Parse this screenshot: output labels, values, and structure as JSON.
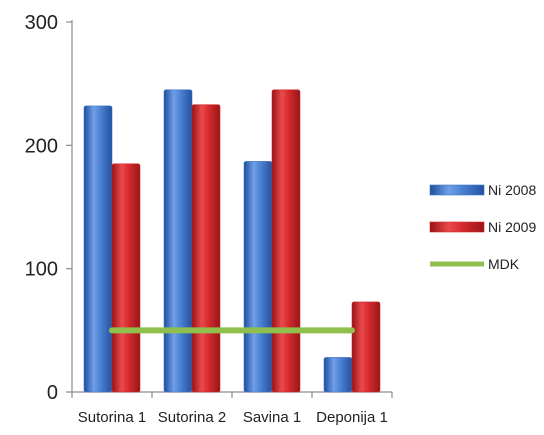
{
  "chart_data": {
    "type": "bar",
    "categories": [
      "Sutorina 1",
      "Sutorina 2",
      "Savina 1",
      "Deponija 1"
    ],
    "series": [
      {
        "name": "Ni 2008",
        "type": "bar",
        "values": [
          232,
          245,
          187,
          28
        ],
        "color": "#3f74c6"
      },
      {
        "name": "Ni 2009",
        "type": "bar",
        "values": [
          185,
          233,
          245,
          73
        ],
        "color": "#d2262a"
      },
      {
        "name": "MDK",
        "type": "line",
        "values": [
          50,
          50,
          50,
          50
        ],
        "color": "#8fbf4d"
      }
    ],
    "y_ticks": [
      0,
      100,
      200,
      300
    ],
    "ylim": [
      0,
      300
    ],
    "grid": false,
    "legend_position": "right"
  }
}
